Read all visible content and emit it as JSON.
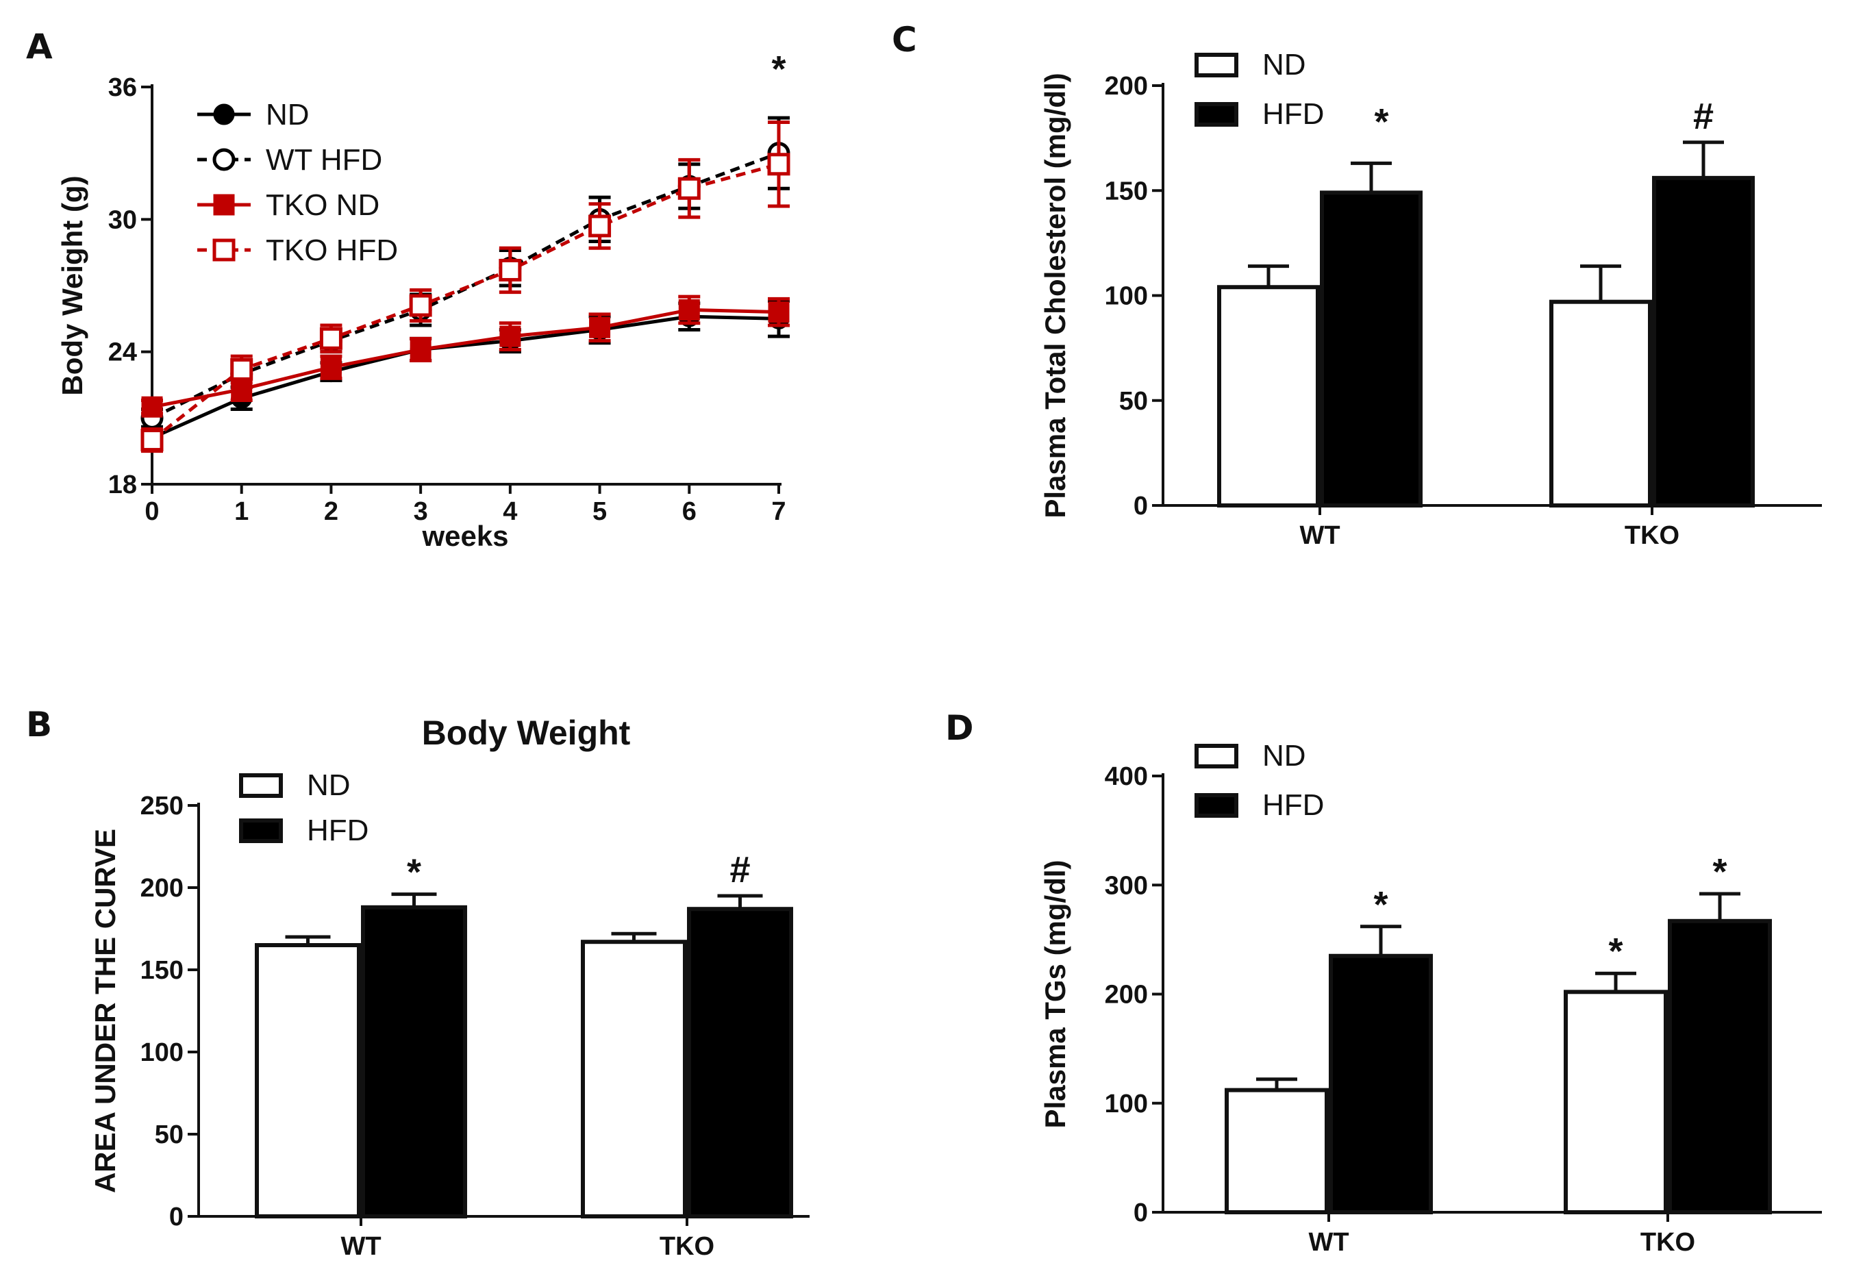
{
  "chart_data": [
    {
      "panel": "A",
      "type": "line",
      "title": "",
      "xlabel": "weeks",
      "ylabel": "Body Weight (g)",
      "x": [
        0,
        1,
        2,
        3,
        4,
        5,
        6,
        7
      ],
      "xlim": [
        0,
        7
      ],
      "ylim": [
        18,
        36
      ],
      "yticks": [
        18,
        24,
        30,
        36
      ],
      "series": [
        {
          "name": "ND",
          "color": "#000000",
          "style": "solid",
          "marker": "filled-circle",
          "values": [
            20.1,
            21.9,
            23.1,
            24.1,
            24.5,
            25.0,
            25.6,
            25.5
          ],
          "errors": [
            0.4,
            0.5,
            0.4,
            0.5,
            0.5,
            0.6,
            0.6,
            0.8
          ]
        },
        {
          "name": "WT HFD",
          "color": "#000000",
          "style": "dashed",
          "marker": "open-circle",
          "values": [
            21.0,
            23.0,
            24.5,
            25.9,
            27.8,
            30.0,
            31.5,
            33.0
          ],
          "errors": [
            0.4,
            0.6,
            0.5,
            0.7,
            0.8,
            1.0,
            1.0,
            1.6
          ]
        },
        {
          "name": "TKO ND",
          "color": "#c00000",
          "style": "solid",
          "marker": "filled-square",
          "values": [
            21.5,
            22.3,
            23.3,
            24.1,
            24.7,
            25.1,
            25.9,
            25.8
          ],
          "errors": [
            0.3,
            0.5,
            0.5,
            0.5,
            0.6,
            0.6,
            0.6,
            0.6
          ]
        },
        {
          "name": "TKO HFD",
          "color": "#c00000",
          "style": "dashed",
          "marker": "open-square",
          "values": [
            20.0,
            23.2,
            24.6,
            26.1,
            27.7,
            29.7,
            31.4,
            32.5
          ],
          "errors": [
            0.5,
            0.6,
            0.6,
            0.7,
            1.0,
            1.0,
            1.3,
            1.9
          ]
        }
      ],
      "annotations": [
        {
          "x": 7,
          "text": "*"
        }
      ]
    },
    {
      "panel": "B",
      "type": "bar",
      "title": "Body Weight",
      "xlabel": "",
      "ylabel": "AREA UNDER THE CURVE",
      "categories": [
        "WT",
        "TKO"
      ],
      "ylim": [
        0,
        250
      ],
      "yticks": [
        0,
        50,
        100,
        150,
        200,
        250
      ],
      "series": [
        {
          "name": "ND",
          "fill": "#ffffff",
          "values": [
            165,
            167
          ],
          "errors": [
            5,
            5
          ]
        },
        {
          "name": "HFD",
          "fill": "#000000",
          "values": [
            188,
            187
          ],
          "errors": [
            8,
            8
          ]
        }
      ],
      "annotations": [
        {
          "category": "WT",
          "series": "HFD",
          "text": "*"
        },
        {
          "category": "TKO",
          "series": "HFD",
          "text": "#"
        }
      ]
    },
    {
      "panel": "C",
      "type": "bar",
      "title": "",
      "xlabel": "",
      "ylabel": "Plasma Total Cholesterol (mg/dl)",
      "categories": [
        "WT",
        "TKO"
      ],
      "ylim": [
        0,
        200
      ],
      "yticks": [
        0,
        50,
        100,
        150,
        200
      ],
      "series": [
        {
          "name": "ND",
          "fill": "#ffffff",
          "values": [
            104,
            97
          ],
          "errors": [
            10,
            17
          ]
        },
        {
          "name": "HFD",
          "fill": "#000000",
          "values": [
            149,
            156
          ],
          "errors": [
            14,
            17
          ]
        }
      ],
      "annotations": [
        {
          "legend_item": "HFD",
          "text": "*"
        },
        {
          "category": "TKO",
          "series": "HFD",
          "text": "#"
        }
      ]
    },
    {
      "panel": "D",
      "type": "bar",
      "title": "",
      "xlabel": "",
      "ylabel": "Plasma TGs (mg/dl)",
      "categories": [
        "WT",
        "TKO"
      ],
      "ylim": [
        0,
        400
      ],
      "yticks": [
        0,
        100,
        200,
        300,
        400
      ],
      "series": [
        {
          "name": "ND",
          "fill": "#ffffff",
          "values": [
            112,
            202
          ],
          "errors": [
            10,
            17
          ]
        },
        {
          "name": "HFD",
          "fill": "#000000",
          "values": [
            235,
            267
          ],
          "errors": [
            27,
            25
          ]
        }
      ],
      "annotations": [
        {
          "category": "WT",
          "series": "HFD",
          "text": "*"
        },
        {
          "category": "TKO",
          "series": "ND",
          "text": "*"
        },
        {
          "category": "TKO",
          "series": "HFD",
          "text": "*"
        }
      ]
    }
  ]
}
